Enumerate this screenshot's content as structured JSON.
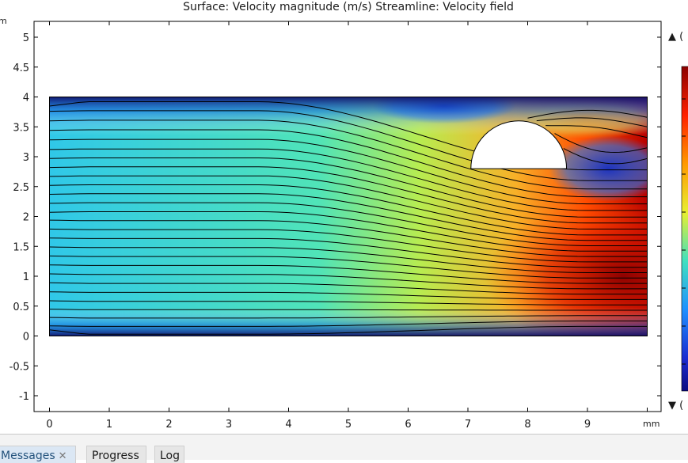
{
  "plot": {
    "title": "Surface: Velocity magnitude (m/s)  Streamline: Velocity field",
    "y_unit": "m",
    "x_unit": "mm",
    "colorbar": {
      "max_label": "▲ (",
      "min_label": "▼ ("
    }
  },
  "chart_data": {
    "type": "heatmap",
    "title": "Surface: Velocity magnitude (m/s)  Streamline: Velocity field",
    "xlabel": "mm",
    "ylabel": "m",
    "xlim": [
      -0.25,
      10.2
    ],
    "ylim": [
      -1.3,
      5.3
    ],
    "x_ticks": [
      0,
      1,
      2,
      3,
      4,
      5,
      6,
      7,
      8,
      9
    ],
    "x_tick_labels": [
      "0",
      "1",
      "2",
      "3",
      "4",
      "5",
      "6",
      "7",
      "8",
      "9"
    ],
    "y_ticks": [
      -1,
      -0.5,
      0,
      0.5,
      1,
      1.5,
      2,
      2.5,
      3,
      3.5,
      4,
      4.5,
      5
    ],
    "y_tick_labels": [
      "-1",
      "-0.5",
      "0",
      "0.5",
      "1",
      "1.5",
      "2",
      "2.5",
      "3",
      "3.5",
      "4",
      "4.5",
      "5"
    ],
    "domain": {
      "x": [
        0,
        10
      ],
      "y": [
        0,
        4
      ]
    },
    "obstacle": {
      "shape": "half-disk",
      "center": [
        7.85,
        2.8
      ],
      "radius": 0.8
    },
    "field": "Velocity magnitude",
    "colormap": "rainbow",
    "colors": {
      "low": "#0a0a80",
      "mid_low": "#1f8cff",
      "mid": "#40e0d0",
      "mid_high": "#dfef3a",
      "high": "#ff4a00",
      "max": "#8b0000"
    },
    "streamlines": {
      "label": "Velocity field",
      "inlet_y": [
        0.03,
        0.16,
        0.3,
        0.44,
        0.58,
        0.73,
        0.88,
        1.03,
        1.18,
        1.33,
        1.48,
        1.63,
        1.78,
        1.93,
        2.08,
        2.23,
        2.38,
        2.53,
        2.68,
        2.83,
        2.98,
        3.13,
        3.29,
        3.45,
        3.61,
        3.77,
        3.92
      ],
      "outlet_y": [
        0.16,
        0.25,
        0.34,
        0.43,
        0.52,
        0.61,
        0.7,
        0.79,
        0.88,
        0.97,
        1.06,
        1.15,
        1.24,
        1.33,
        1.42,
        1.51,
        1.6,
        1.69,
        1.79,
        1.89,
        1.99,
        2.1,
        2.21,
        2.33,
        2.46,
        2.6,
        2.78
      ]
    },
    "wake_streamlines": {
      "x_start": [
        8.0,
        8.15,
        8.3,
        8.45,
        8.6
      ],
      "outlet_y": [
        3.66,
        3.5,
        3.32,
        3.15,
        2.97
      ]
    },
    "grid": false,
    "legend": "colorbar-right"
  },
  "tabs": [
    {
      "label": "Messages",
      "close": "✕"
    },
    {
      "label": "Progress"
    },
    {
      "label": "Log"
    }
  ]
}
